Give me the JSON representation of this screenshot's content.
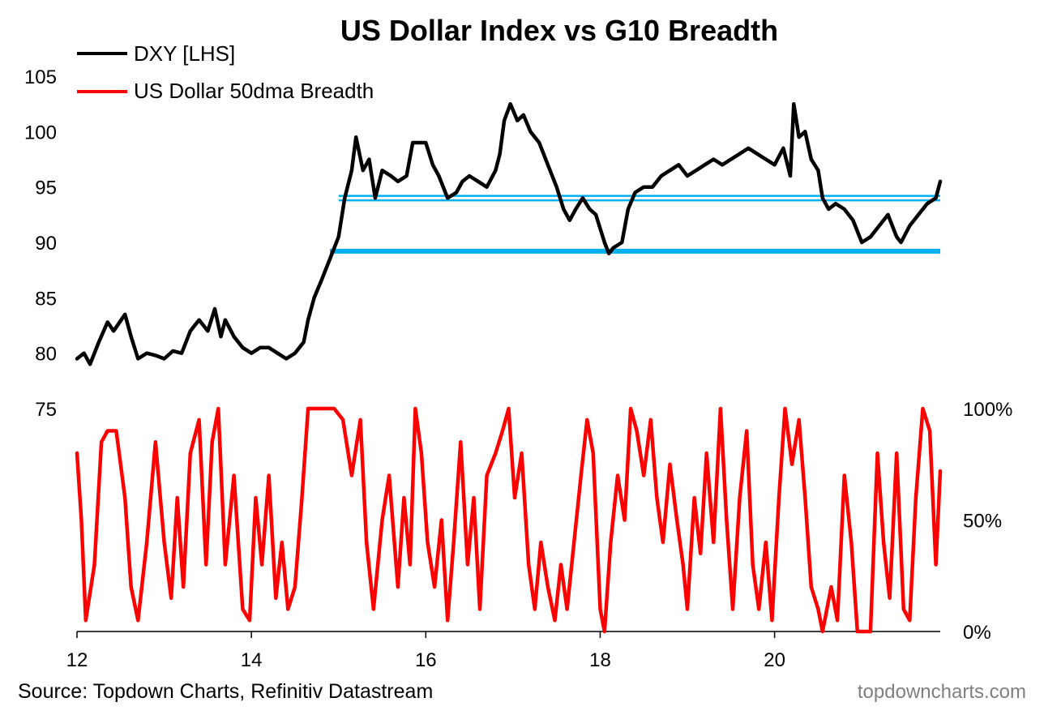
{
  "chart_data": {
    "type": "line",
    "title": "US Dollar Index vs G10 Breadth",
    "source": "Source: Topdown Charts, Refinitiv Datastream",
    "brand": "topdowncharts.com",
    "legend": {
      "placement": "top-left",
      "entries": [
        "DXY [LHS]",
        "US Dollar 50dma Breadth"
      ]
    },
    "x_axis": {
      "range": [
        2012,
        2021.9
      ],
      "ticks": [
        2012,
        2014,
        2016,
        2018,
        2020
      ],
      "tick_labels": [
        "12",
        "14",
        "16",
        "18",
        "20"
      ]
    },
    "y_left": {
      "range": [
        75,
        105
      ],
      "ticks": [
        75,
        80,
        85,
        90,
        95,
        100,
        105
      ],
      "tick_labels": [
        "75",
        "80",
        "85",
        "90",
        "95",
        "100",
        "105"
      ]
    },
    "y_right": {
      "range": [
        0,
        100
      ],
      "ticks": [
        0,
        50,
        100
      ],
      "tick_labels": [
        "0%",
        "50%",
        "100%"
      ]
    },
    "colors": {
      "dxy": "#000000",
      "breadth": "#ff0000",
      "support": "#00b0f0"
    },
    "series": [
      {
        "name": "DXY [LHS]",
        "axis": "left",
        "color": "#000000",
        "points": [
          [
            2012.0,
            79.5
          ],
          [
            2012.08,
            80.0
          ],
          [
            2012.15,
            79.0
          ],
          [
            2012.25,
            81.0
          ],
          [
            2012.35,
            82.8
          ],
          [
            2012.42,
            82.0
          ],
          [
            2012.55,
            83.5
          ],
          [
            2012.62,
            81.5
          ],
          [
            2012.7,
            79.5
          ],
          [
            2012.8,
            80.0
          ],
          [
            2012.9,
            79.8
          ],
          [
            2013.0,
            79.5
          ],
          [
            2013.1,
            80.2
          ],
          [
            2013.2,
            80.0
          ],
          [
            2013.3,
            82.0
          ],
          [
            2013.4,
            83.0
          ],
          [
            2013.5,
            82.0
          ],
          [
            2013.58,
            84.0
          ],
          [
            2013.65,
            81.5
          ],
          [
            2013.7,
            83.0
          ],
          [
            2013.8,
            81.5
          ],
          [
            2013.9,
            80.5
          ],
          [
            2014.0,
            80.0
          ],
          [
            2014.1,
            80.5
          ],
          [
            2014.2,
            80.5
          ],
          [
            2014.3,
            80.0
          ],
          [
            2014.4,
            79.5
          ],
          [
            2014.5,
            80.0
          ],
          [
            2014.6,
            81.0
          ],
          [
            2014.65,
            83.0
          ],
          [
            2014.72,
            85.0
          ],
          [
            2014.8,
            86.5
          ],
          [
            2014.9,
            88.5
          ],
          [
            2015.0,
            90.5
          ],
          [
            2015.07,
            94.0
          ],
          [
            2015.15,
            96.5
          ],
          [
            2015.2,
            99.5
          ],
          [
            2015.28,
            96.5
          ],
          [
            2015.35,
            97.5
          ],
          [
            2015.42,
            94.0
          ],
          [
            2015.5,
            96.5
          ],
          [
            2015.6,
            96.0
          ],
          [
            2015.68,
            95.5
          ],
          [
            2015.78,
            96.0
          ],
          [
            2015.85,
            99.0
          ],
          [
            2015.92,
            99.0
          ],
          [
            2016.0,
            99.0
          ],
          [
            2016.08,
            97.0
          ],
          [
            2016.15,
            96.0
          ],
          [
            2016.25,
            94.0
          ],
          [
            2016.35,
            94.5
          ],
          [
            2016.42,
            95.5
          ],
          [
            2016.5,
            96.0
          ],
          [
            2016.6,
            95.5
          ],
          [
            2016.7,
            95.0
          ],
          [
            2016.8,
            96.5
          ],
          [
            2016.85,
            98.0
          ],
          [
            2016.9,
            101.0
          ],
          [
            2016.97,
            102.5
          ],
          [
            2017.05,
            101.0
          ],
          [
            2017.12,
            101.5
          ],
          [
            2017.2,
            100.0
          ],
          [
            2017.3,
            99.0
          ],
          [
            2017.4,
            97.0
          ],
          [
            2017.5,
            95.0
          ],
          [
            2017.58,
            93.0
          ],
          [
            2017.65,
            92.0
          ],
          [
            2017.72,
            93.0
          ],
          [
            2017.8,
            94.0
          ],
          [
            2017.88,
            93.0
          ],
          [
            2017.95,
            92.5
          ],
          [
            2018.05,
            90.0
          ],
          [
            2018.1,
            89.0
          ],
          [
            2018.15,
            89.5
          ],
          [
            2018.25,
            90.0
          ],
          [
            2018.32,
            93.0
          ],
          [
            2018.4,
            94.5
          ],
          [
            2018.5,
            95.0
          ],
          [
            2018.6,
            95.0
          ],
          [
            2018.7,
            96.0
          ],
          [
            2018.8,
            96.5
          ],
          [
            2018.9,
            97.0
          ],
          [
            2019.0,
            96.0
          ],
          [
            2019.1,
            96.5
          ],
          [
            2019.2,
            97.0
          ],
          [
            2019.3,
            97.5
          ],
          [
            2019.4,
            97.0
          ],
          [
            2019.5,
            97.5
          ],
          [
            2019.6,
            98.0
          ],
          [
            2019.7,
            98.5
          ],
          [
            2019.8,
            98.0
          ],
          [
            2019.9,
            97.5
          ],
          [
            2020.0,
            97.0
          ],
          [
            2020.1,
            98.5
          ],
          [
            2020.18,
            96.0
          ],
          [
            2020.22,
            102.5
          ],
          [
            2020.28,
            99.5
          ],
          [
            2020.35,
            100.0
          ],
          [
            2020.42,
            97.5
          ],
          [
            2020.5,
            96.5
          ],
          [
            2020.55,
            94.0
          ],
          [
            2020.62,
            93.0
          ],
          [
            2020.7,
            93.5
          ],
          [
            2020.8,
            93.0
          ],
          [
            2020.9,
            92.0
          ],
          [
            2021.0,
            90.0
          ],
          [
            2021.1,
            90.5
          ],
          [
            2021.2,
            91.5
          ],
          [
            2021.3,
            92.5
          ],
          [
            2021.4,
            90.5
          ],
          [
            2021.45,
            90.0
          ],
          [
            2021.55,
            91.5
          ],
          [
            2021.65,
            92.5
          ],
          [
            2021.75,
            93.5
          ],
          [
            2021.85,
            94.0
          ],
          [
            2021.9,
            95.5
          ]
        ]
      },
      {
        "name": "US Dollar 50dma Breadth",
        "axis": "right",
        "color": "#ff0000",
        "points": [
          [
            2012.0,
            80
          ],
          [
            2012.05,
            50
          ],
          [
            2012.1,
            5
          ],
          [
            2012.2,
            30
          ],
          [
            2012.28,
            85
          ],
          [
            2012.35,
            90
          ],
          [
            2012.45,
            90
          ],
          [
            2012.55,
            60
          ],
          [
            2012.62,
            20
          ],
          [
            2012.7,
            5
          ],
          [
            2012.8,
            40
          ],
          [
            2012.9,
            85
          ],
          [
            2013.0,
            40
          ],
          [
            2013.08,
            15
          ],
          [
            2013.15,
            60
          ],
          [
            2013.22,
            20
          ],
          [
            2013.3,
            80
          ],
          [
            2013.4,
            95
          ],
          [
            2013.48,
            30
          ],
          [
            2013.55,
            85
          ],
          [
            2013.62,
            100
          ],
          [
            2013.7,
            30
          ],
          [
            2013.8,
            70
          ],
          [
            2013.9,
            10
          ],
          [
            2013.98,
            5
          ],
          [
            2014.05,
            60
          ],
          [
            2014.12,
            30
          ],
          [
            2014.2,
            70
          ],
          [
            2014.28,
            15
          ],
          [
            2014.35,
            40
          ],
          [
            2014.42,
            10
          ],
          [
            2014.5,
            20
          ],
          [
            2014.58,
            60
          ],
          [
            2014.65,
            100
          ],
          [
            2014.75,
            100
          ],
          [
            2014.85,
            100
          ],
          [
            2014.95,
            100
          ],
          [
            2015.05,
            95
          ],
          [
            2015.15,
            70
          ],
          [
            2015.25,
            95
          ],
          [
            2015.32,
            40
          ],
          [
            2015.4,
            10
          ],
          [
            2015.5,
            50
          ],
          [
            2015.58,
            70
          ],
          [
            2015.68,
            20
          ],
          [
            2015.75,
            60
          ],
          [
            2015.82,
            30
          ],
          [
            2015.88,
            100
          ],
          [
            2015.95,
            80
          ],
          [
            2016.02,
            40
          ],
          [
            2016.1,
            20
          ],
          [
            2016.18,
            50
          ],
          [
            2016.25,
            5
          ],
          [
            2016.32,
            40
          ],
          [
            2016.4,
            85
          ],
          [
            2016.48,
            30
          ],
          [
            2016.55,
            60
          ],
          [
            2016.62,
            10
          ],
          [
            2016.7,
            70
          ],
          [
            2016.8,
            80
          ],
          [
            2016.88,
            90
          ],
          [
            2016.95,
            100
          ],
          [
            2017.02,
            60
          ],
          [
            2017.1,
            80
          ],
          [
            2017.18,
            30
          ],
          [
            2017.25,
            10
          ],
          [
            2017.32,
            40
          ],
          [
            2017.4,
            20
          ],
          [
            2017.48,
            5
          ],
          [
            2017.55,
            30
          ],
          [
            2017.62,
            10
          ],
          [
            2017.7,
            40
          ],
          [
            2017.78,
            70
          ],
          [
            2017.85,
            95
          ],
          [
            2017.92,
            80
          ],
          [
            2018.0,
            10
          ],
          [
            2018.05,
            0
          ],
          [
            2018.12,
            40
          ],
          [
            2018.2,
            70
          ],
          [
            2018.28,
            50
          ],
          [
            2018.35,
            100
          ],
          [
            2018.42,
            90
          ],
          [
            2018.5,
            70
          ],
          [
            2018.58,
            95
          ],
          [
            2018.65,
            60
          ],
          [
            2018.72,
            40
          ],
          [
            2018.8,
            75
          ],
          [
            2018.88,
            50
          ],
          [
            2018.95,
            30
          ],
          [
            2019.0,
            10
          ],
          [
            2019.08,
            60
          ],
          [
            2019.15,
            35
          ],
          [
            2019.22,
            80
          ],
          [
            2019.3,
            40
          ],
          [
            2019.38,
            100
          ],
          [
            2019.45,
            50
          ],
          [
            2019.52,
            10
          ],
          [
            2019.6,
            60
          ],
          [
            2019.68,
            90
          ],
          [
            2019.75,
            30
          ],
          [
            2019.82,
            10
          ],
          [
            2019.9,
            40
          ],
          [
            2019.97,
            5
          ],
          [
            2020.05,
            60
          ],
          [
            2020.12,
            100
          ],
          [
            2020.2,
            75
          ],
          [
            2020.28,
            95
          ],
          [
            2020.35,
            60
          ],
          [
            2020.42,
            20
          ],
          [
            2020.5,
            10
          ],
          [
            2020.55,
            0
          ],
          [
            2020.65,
            20
          ],
          [
            2020.72,
            5
          ],
          [
            2020.8,
            70
          ],
          [
            2020.88,
            40
          ],
          [
            2020.95,
            0
          ],
          [
            2021.02,
            0
          ],
          [
            2021.1,
            0
          ],
          [
            2021.18,
            80
          ],
          [
            2021.25,
            40
          ],
          [
            2021.32,
            15
          ],
          [
            2021.4,
            80
          ],
          [
            2021.48,
            10
          ],
          [
            2021.55,
            5
          ],
          [
            2021.62,
            60
          ],
          [
            2021.7,
            100
          ],
          [
            2021.78,
            90
          ],
          [
            2021.85,
            30
          ],
          [
            2021.9,
            72
          ]
        ]
      }
    ],
    "support_lines": [
      {
        "level": 89.2,
        "from": 2014.9,
        "to": 2021.9,
        "color": "#00b0f0"
      },
      {
        "level": 93.8,
        "from": 2015.0,
        "to": 2021.9,
        "color": "#00b0f0"
      },
      {
        "level": 94.2,
        "from": 2015.0,
        "to": 2021.9,
        "color": "#00b0f0"
      }
    ]
  }
}
